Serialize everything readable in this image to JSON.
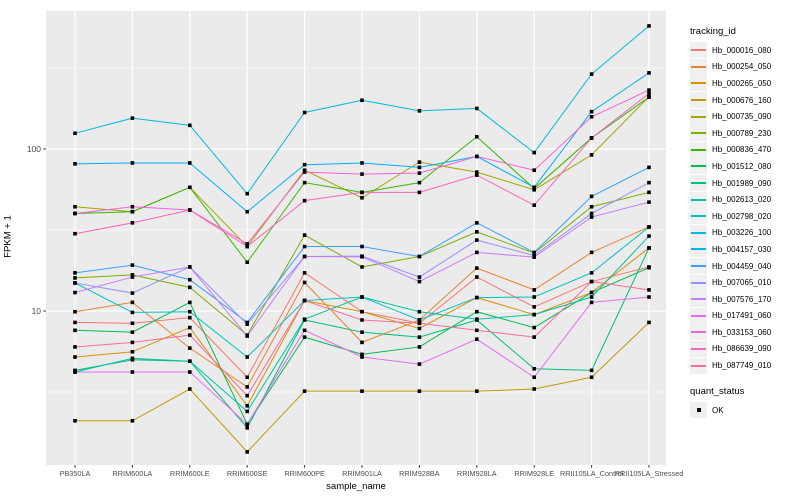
{
  "figure": {
    "background": "#FFFFFF",
    "panel_background": "#EBEBEB",
    "gridline_color": "#FFFFFF",
    "tick_color": "#333333",
    "tick_label_color": "#4D4D4D",
    "point_color": "#000000"
  },
  "axes": {
    "x_title": "sample_name",
    "y_title": "FPKM + 1",
    "y_tick_labels": [
      "100",
      "10"
    ]
  },
  "legend": {
    "tracking_title": "tracking_id",
    "quant_title": "quant_status",
    "quant_items": [
      "OK"
    ]
  },
  "chart_data": {
    "type": "line",
    "title": "",
    "xlabel": "sample_name",
    "ylabel": "FPKM + 1",
    "y_scale": "log10",
    "ylim": [
      1.05,
      750
    ],
    "y_major_ticks": [
      10,
      100
    ],
    "y_minor_ticks": [
      3.162,
      31.62,
      316.2
    ],
    "grid": "white-on-gray",
    "legend_position": "right",
    "legend_title": "tracking_id",
    "point_marker": "black-square",
    "quant_status_legend": {
      "title": "quant_status",
      "items": [
        "OK"
      ]
    },
    "categories": [
      "PB350LA",
      "RRIM600LA",
      "RRIM600LE",
      "RRIM600SE",
      "RRIM600PE",
      "RRIM901LA",
      "RRIM928BA",
      "RRIM928LA",
      "RRIM928LE",
      "RRII105LA_Control",
      "RRII105LA_Stressed"
    ],
    "series": [
      {
        "name": "Hb_000016_080",
        "color": "#F8766D",
        "values": [
          8.5,
          8.4,
          9.1,
          3.9,
          17.2,
          9.9,
          8.4,
          16.2,
          10.6,
          15.2,
          18.7
        ]
      },
      {
        "name": "Hb_000254_050",
        "color": "#EA8331",
        "values": [
          9.9,
          11.3,
          5.9,
          3.4,
          15.0,
          6.4,
          8.8,
          18.4,
          13.5,
          23.0,
          33.0
        ]
      },
      {
        "name": "Hb_000265_050",
        "color": "#D89000",
        "values": [
          5.2,
          5.6,
          7.9,
          2.6,
          11.6,
          9.9,
          7.8,
          12.1,
          9.5,
          13.0,
          24.5
        ]
      },
      {
        "name": "Hb_000676_160",
        "color": "#C09B00",
        "values": [
          2.1,
          2.1,
          3.3,
          1.35,
          3.2,
          3.2,
          3.2,
          3.2,
          3.3,
          3.9,
          8.5
        ]
      },
      {
        "name": "Hb_000735_090",
        "color": "#A3A500",
        "values": [
          44,
          41,
          58,
          25,
          74,
          50,
          83,
          72,
          56,
          92,
          210
        ]
      },
      {
        "name": "Hb_000789_230",
        "color": "#7CAE00",
        "values": [
          16.0,
          16.7,
          14.0,
          7.1,
          29.4,
          18.7,
          21.7,
          30.8,
          22.8,
          44,
          54
        ]
      },
      {
        "name": "Hb_000836_470",
        "color": "#39B600",
        "values": [
          40,
          41,
          58,
          20,
          62,
          54,
          62,
          119,
          57,
          117,
          209
        ]
      },
      {
        "name": "Hb_001512_080",
        "color": "#00BB4E",
        "values": [
          7.6,
          7.4,
          11.3,
          2.0,
          6.9,
          5.4,
          6.0,
          9.9,
          7.9,
          13.0,
          18.5
        ]
      },
      {
        "name": "Hb_001989_090",
        "color": "#00BF7D",
        "values": [
          4.3,
          5.0,
          4.9,
          1.9,
          8.8,
          7.4,
          6.9,
          8.8,
          4.4,
          4.3,
          24.5
        ]
      },
      {
        "name": "Hb_002613_020",
        "color": "#00C1A3",
        "values": [
          4.2,
          5.1,
          4.9,
          2.4,
          8.9,
          12.2,
          9.9,
          8.9,
          9.5,
          12.2,
          29
        ]
      },
      {
        "name": "Hb_002798_020",
        "color": "#00BFC4",
        "values": [
          14.9,
          9.8,
          9.9,
          5.2,
          11.6,
          12.2,
          8.8,
          12.1,
          12.2,
          17.2,
          33
        ]
      },
      {
        "name": "Hb_003226_100",
        "color": "#00BAE0",
        "values": [
          125,
          155,
          140,
          53,
          168,
          200,
          172,
          178,
          95,
          290,
          575
        ]
      },
      {
        "name": "Hb_004157_030",
        "color": "#00B0F6",
        "values": [
          81,
          82,
          82,
          41,
          80,
          82,
          77,
          90,
          58,
          170,
          295
        ]
      },
      {
        "name": "Hb_004459_040",
        "color": "#35A2FF",
        "values": [
          17.2,
          19.2,
          15.6,
          8.5,
          25,
          25,
          21.7,
          35,
          23,
          51,
          77
        ]
      },
      {
        "name": "Hb_007065_010",
        "color": "#9590FF",
        "values": [
          14.9,
          12.9,
          18.7,
          8.3,
          21.7,
          21.8,
          16.2,
          27.4,
          22.0,
          40,
          62
        ]
      },
      {
        "name": "Hb_007576_170",
        "color": "#C77CFF",
        "values": [
          13.0,
          16.2,
          18.7,
          7.0,
          21.7,
          21.6,
          15.2,
          23,
          21.5,
          38,
          47
        ]
      },
      {
        "name": "Hb_017491_060",
        "color": "#E76BF3",
        "values": [
          4.2,
          4.2,
          4.2,
          2.0,
          7.6,
          5.2,
          4.7,
          6.7,
          3.9,
          11.3,
          12.2
        ]
      },
      {
        "name": "Hb_033153_060",
        "color": "#FA62DB",
        "values": [
          40,
          44,
          42,
          26,
          72,
          70,
          71,
          90,
          74,
          158,
          231
        ]
      },
      {
        "name": "Hb_086639_090",
        "color": "#FF62BC",
        "values": [
          30,
          35,
          42,
          25,
          48,
          54,
          54,
          69,
          45,
          117,
          220
        ]
      },
      {
        "name": "Hb_087749_010",
        "color": "#FF6A98",
        "values": [
          6.0,
          6.4,
          7.1,
          3.0,
          11.6,
          8.8,
          8.4,
          7.6,
          6.9,
          15.2,
          13.5
        ]
      }
    ]
  }
}
